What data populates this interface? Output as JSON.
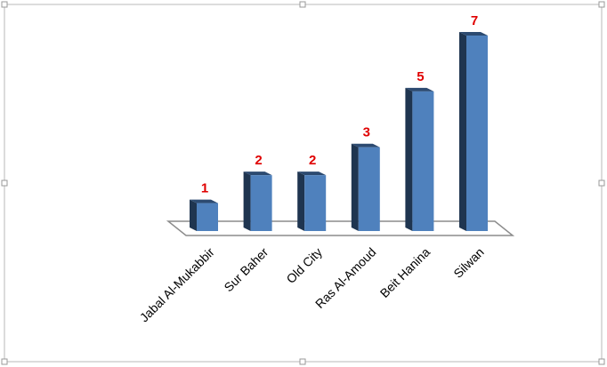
{
  "chart_data": {
    "type": "bar3d",
    "categories": [
      "Jabal Al-Mukabbir",
      "Sur Baher",
      "Old City",
      "Ras Al-Amoud",
      "Beit Hanina",
      "Silwan"
    ],
    "values": [
      1,
      2,
      2,
      3,
      5,
      7
    ],
    "color": "#4f81bd",
    "label_color": "#e00000"
  }
}
